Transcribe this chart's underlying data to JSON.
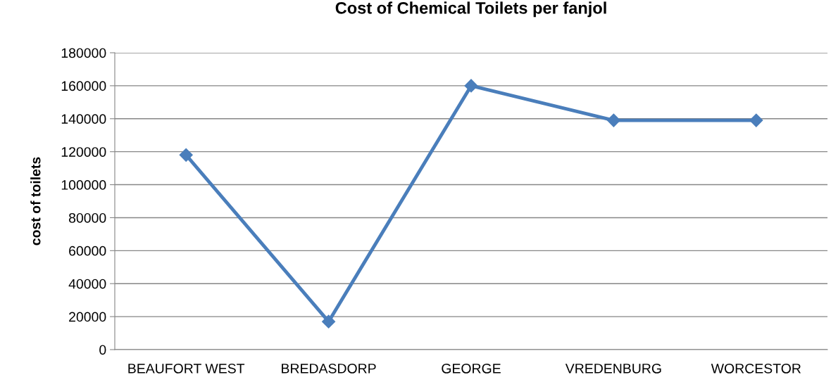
{
  "chart_data": {
    "type": "line",
    "title": "Cost of Chemical Toilets per fanjol",
    "ylabel": "cost of toilets",
    "categories": [
      "BEAUFORT WEST",
      "BREDASDORP",
      "GEORGE",
      "VREDENBURG",
      "WORCESTOR"
    ],
    "series": [
      {
        "color": "#4a7ebb",
        "values": [
          118000,
          17000,
          160000,
          139000,
          139000
        ]
      }
    ],
    "ylim": [
      0,
      180000
    ],
    "yticks": [
      0,
      20000,
      40000,
      60000,
      80000,
      100000,
      120000,
      140000,
      160000,
      180000
    ],
    "grid": "y",
    "legend": false,
    "marker": "diamond",
    "line_style": "solid"
  }
}
